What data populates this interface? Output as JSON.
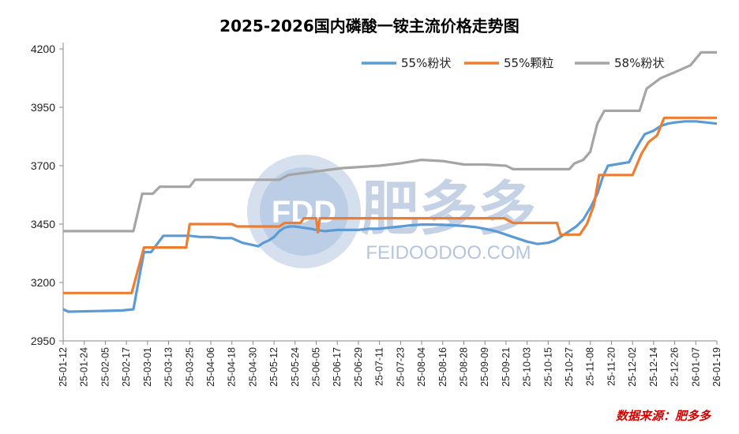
{
  "chart_data": {
    "type": "line",
    "title": "2025-2026国内磷酸一铵主流价格走势图",
    "xlabel": "",
    "ylabel": "",
    "ylim": [
      2950,
      4200
    ],
    "yticks": [
      2950,
      3200,
      3450,
      3700,
      3950,
      4200
    ],
    "x_tick_labels": [
      "25-01-12",
      "25-01-24",
      "25-02-05",
      "25-02-17",
      "25-03-01",
      "25-03-13",
      "25-03-25",
      "25-04-06",
      "25-04-18",
      "25-04-30",
      "25-05-12",
      "25-05-24",
      "25-06-05",
      "25-06-17",
      "25-06-29",
      "25-07-11",
      "25-07-23",
      "25-08-04",
      "25-08-16",
      "25-08-28",
      "25-09-09",
      "25-09-21",
      "25-10-03",
      "25-10-15",
      "25-10-27",
      "25-11-08",
      "25-11-20",
      "25-12-02",
      "25-12-14",
      "25-12-26",
      "26-01-07",
      "26-01-19"
    ],
    "x_start": "2025-01-12",
    "x_end": "2026-01-19",
    "grid": false,
    "legend_position": "top-right",
    "series": [
      {
        "name": "55%粉状",
        "color": "#5b9bd5",
        "points": [
          [
            "2025-01-12",
            3085
          ],
          [
            "2025-01-15",
            3075
          ],
          [
            "2025-02-14",
            3080
          ],
          [
            "2025-02-21",
            3085
          ],
          [
            "2025-02-24",
            3210
          ],
          [
            "2025-02-27",
            3330
          ],
          [
            "2025-03-03",
            3330
          ],
          [
            "2025-03-06",
            3360
          ],
          [
            "2025-03-10",
            3400
          ],
          [
            "2025-03-20",
            3400
          ],
          [
            "2025-03-25",
            3400
          ],
          [
            "2025-03-31",
            3395
          ],
          [
            "2025-04-06",
            3395
          ],
          [
            "2025-04-12",
            3390
          ],
          [
            "2025-04-18",
            3390
          ],
          [
            "2025-04-24",
            3370
          ],
          [
            "2025-04-30",
            3360
          ],
          [
            "2025-05-03",
            3355
          ],
          [
            "2025-05-06",
            3370
          ],
          [
            "2025-05-09",
            3380
          ],
          [
            "2025-05-12",
            3395
          ],
          [
            "2025-05-15",
            3420
          ],
          [
            "2025-05-18",
            3435
          ],
          [
            "2025-05-21",
            3440
          ],
          [
            "2025-05-24",
            3440
          ],
          [
            "2025-05-28",
            3435
          ],
          [
            "2025-06-02",
            3430
          ],
          [
            "2025-06-05",
            3425
          ],
          [
            "2025-06-10",
            3420
          ],
          [
            "2025-06-17",
            3425
          ],
          [
            "2025-06-23",
            3425
          ],
          [
            "2025-06-29",
            3425
          ],
          [
            "2025-07-05",
            3430
          ],
          [
            "2025-07-11",
            3430
          ],
          [
            "2025-07-17",
            3435
          ],
          [
            "2025-07-23",
            3440
          ],
          [
            "2025-07-29",
            3445
          ],
          [
            "2025-08-04",
            3448
          ],
          [
            "2025-08-10",
            3448
          ],
          [
            "2025-08-16",
            3447
          ],
          [
            "2025-08-22",
            3445
          ],
          [
            "2025-08-28",
            3442
          ],
          [
            "2025-09-03",
            3438
          ],
          [
            "2025-09-09",
            3430
          ],
          [
            "2025-09-15",
            3420
          ],
          [
            "2025-09-21",
            3405
          ],
          [
            "2025-09-27",
            3390
          ],
          [
            "2025-10-03",
            3375
          ],
          [
            "2025-10-09",
            3365
          ],
          [
            "2025-10-15",
            3370
          ],
          [
            "2025-10-19",
            3380
          ],
          [
            "2025-10-23",
            3400
          ],
          [
            "2025-10-27",
            3420
          ],
          [
            "2025-10-31",
            3440
          ],
          [
            "2025-11-04",
            3470
          ],
          [
            "2025-11-08",
            3520
          ],
          [
            "2025-11-12",
            3580
          ],
          [
            "2025-11-15",
            3650
          ],
          [
            "2025-11-18",
            3700
          ],
          [
            "2025-11-22",
            3705
          ],
          [
            "2025-11-26",
            3710
          ],
          [
            "2025-11-30",
            3715
          ],
          [
            "2025-12-03",
            3760
          ],
          [
            "2025-12-06",
            3800
          ],
          [
            "2025-12-09",
            3835
          ],
          [
            "2025-12-14",
            3850
          ],
          [
            "2025-12-18",
            3870
          ],
          [
            "2025-12-22",
            3880
          ],
          [
            "2025-12-26",
            3885
          ],
          [
            "2026-01-01",
            3890
          ],
          [
            "2026-01-07",
            3890
          ],
          [
            "2026-01-13",
            3885
          ],
          [
            "2026-01-19",
            3880
          ]
        ]
      },
      {
        "name": "55%颗粒",
        "color": "#ed7d31",
        "points": [
          [
            "2025-01-12",
            3155
          ],
          [
            "2025-02-20",
            3155
          ],
          [
            "2025-02-27",
            3350
          ],
          [
            "2025-03-23",
            3350
          ],
          [
            "2025-03-25",
            3450
          ],
          [
            "2025-04-18",
            3450
          ],
          [
            "2025-04-21",
            3440
          ],
          [
            "2025-05-15",
            3440
          ],
          [
            "2025-05-18",
            3455
          ],
          [
            "2025-05-27",
            3455
          ],
          [
            "2025-05-29",
            3475
          ],
          [
            "2025-06-05",
            3475
          ],
          [
            "2025-06-06",
            3415
          ],
          [
            "2025-06-07",
            3475
          ],
          [
            "2025-09-20",
            3475
          ],
          [
            "2025-09-25",
            3455
          ],
          [
            "2025-10-20",
            3455
          ],
          [
            "2025-10-22",
            3405
          ],
          [
            "2025-11-02",
            3405
          ],
          [
            "2025-11-06",
            3450
          ],
          [
            "2025-11-10",
            3530
          ],
          [
            "2025-11-13",
            3660
          ],
          [
            "2025-12-02",
            3660
          ],
          [
            "2025-12-07",
            3750
          ],
          [
            "2025-12-11",
            3800
          ],
          [
            "2025-12-16",
            3830
          ],
          [
            "2025-12-20",
            3905
          ],
          [
            "2026-01-19",
            3905
          ]
        ]
      },
      {
        "name": "58%粉状",
        "color": "#a5a5a5",
        "points": [
          [
            "2025-01-12",
            3420
          ],
          [
            "2025-02-21",
            3420
          ],
          [
            "2025-02-26",
            3580
          ],
          [
            "2025-03-04",
            3580
          ],
          [
            "2025-03-08",
            3610
          ],
          [
            "2025-03-25",
            3610
          ],
          [
            "2025-03-28",
            3640
          ],
          [
            "2025-05-15",
            3640
          ],
          [
            "2025-05-20",
            3660
          ],
          [
            "2025-06-20",
            3690
          ],
          [
            "2025-07-11",
            3700
          ],
          [
            "2025-07-23",
            3710
          ],
          [
            "2025-08-04",
            3725
          ],
          [
            "2025-08-16",
            3720
          ],
          [
            "2025-08-28",
            3705
          ],
          [
            "2025-09-09",
            3705
          ],
          [
            "2025-09-21",
            3700
          ],
          [
            "2025-09-25",
            3685
          ],
          [
            "2025-10-27",
            3685
          ],
          [
            "2025-10-30",
            3710
          ],
          [
            "2025-11-04",
            3725
          ],
          [
            "2025-11-08",
            3760
          ],
          [
            "2025-11-12",
            3880
          ],
          [
            "2025-11-16",
            3935
          ],
          [
            "2025-12-06",
            3935
          ],
          [
            "2025-12-10",
            4030
          ],
          [
            "2025-12-18",
            4075
          ],
          [
            "2025-12-26",
            4100
          ],
          [
            "2026-01-04",
            4130
          ],
          [
            "2026-01-10",
            4185
          ],
          [
            "2026-01-19",
            4185
          ]
        ]
      }
    ]
  },
  "watermark": {
    "logo_text": "FDD",
    "brand_name": "肥多多",
    "domain": "FEIDOODOO.COM"
  },
  "source_note": "数据来源：肥多多"
}
